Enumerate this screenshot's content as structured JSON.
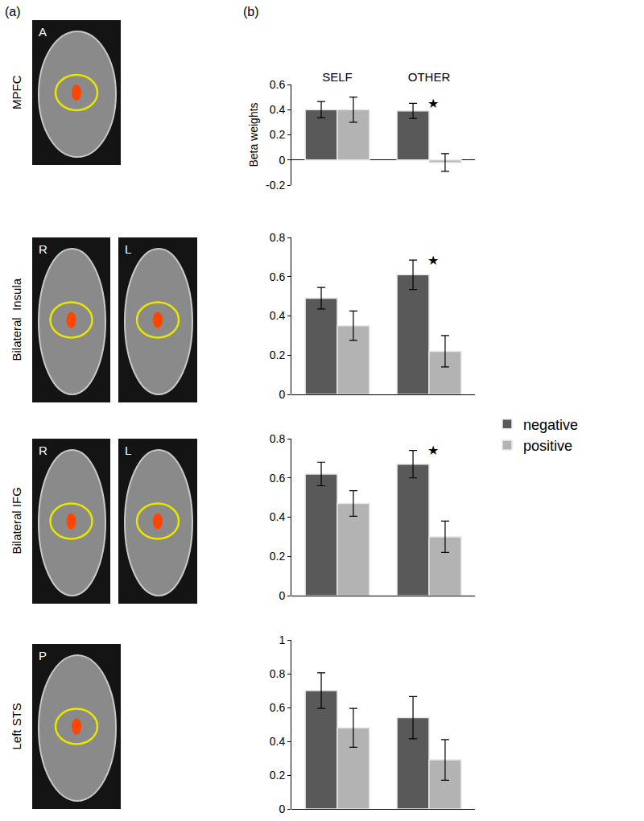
{
  "panel_labels": [
    "(a)",
    "(b)"
  ],
  "brain_panels": [
    {
      "region": "MPFC",
      "images": [
        "A"
      ]
    },
    {
      "region": "Bilateral  Insula",
      "images": [
        "R",
        "L"
      ]
    },
    {
      "region": "Bilateral IFG",
      "images": [
        "R",
        "L"
      ]
    },
    {
      "region": "Left STS",
      "images": [
        "P"
      ]
    }
  ],
  "chart_data": [
    {
      "type": "bar",
      "categories": [
        "SELF",
        "OTHER"
      ],
      "ylabel": "Beta weights",
      "tick_labels": true,
      "legend": "right",
      "ylim": [
        -0.2,
        0.6
      ],
      "yticks": [
        -0.2,
        0,
        0.2,
        0.4,
        0.6
      ],
      "series": [
        {
          "name": "negative",
          "color": "#595959",
          "values": [
            0.4,
            0.39
          ],
          "errors": [
            0.065,
            0.06
          ]
        },
        {
          "name": "positive",
          "color": "#b3b3b3",
          "values": [
            0.4,
            -0.02
          ],
          "errors": [
            0.1,
            0.07
          ]
        }
      ],
      "annotations": [
        {
          "text": "★",
          "category": "OTHER",
          "series": "negative"
        }
      ]
    },
    {
      "type": "bar",
      "categories": [
        "SELF",
        "OTHER"
      ],
      "tick_labels": "y",
      "ylim": [
        0,
        0.8
      ],
      "yticks": [
        0,
        0.2,
        0.4,
        0.6,
        0.8
      ],
      "series": [
        {
          "name": "negative",
          "color": "#595959",
          "values": [
            0.49,
            0.61
          ],
          "errors": [
            0.055,
            0.075
          ]
        },
        {
          "name": "positive",
          "color": "#b3b3b3",
          "values": [
            0.35,
            0.22
          ],
          "errors": [
            0.075,
            0.08
          ]
        }
      ],
      "annotations": [
        {
          "text": "★",
          "category": "OTHER",
          "series": "negative"
        }
      ]
    },
    {
      "type": "bar",
      "categories": [
        "SELF",
        "OTHER"
      ],
      "tick_labels": "y",
      "ylim": [
        0,
        0.8
      ],
      "yticks": [
        0,
        0.2,
        0.4,
        0.6,
        0.8
      ],
      "series": [
        {
          "name": "negative",
          "color": "#595959",
          "values": [
            0.62,
            0.67
          ],
          "errors": [
            0.06,
            0.07
          ]
        },
        {
          "name": "positive",
          "color": "#b3b3b3",
          "values": [
            0.47,
            0.3
          ],
          "errors": [
            0.065,
            0.08
          ]
        }
      ],
      "annotations": [
        {
          "text": "★",
          "category": "OTHER",
          "series": "negative"
        }
      ]
    },
    {
      "type": "bar",
      "categories": [
        "SELF",
        "OTHER"
      ],
      "tick_labels": "y",
      "ylim": [
        0,
        1
      ],
      "yticks": [
        0,
        0.2,
        0.4,
        0.6,
        0.8,
        1
      ],
      "series": [
        {
          "name": "negative",
          "color": "#595959",
          "values": [
            0.7,
            0.54
          ],
          "errors": [
            0.105,
            0.125
          ]
        },
        {
          "name": "positive",
          "color": "#b3b3b3",
          "values": [
            0.48,
            0.29
          ],
          "errors": [
            0.115,
            0.12
          ]
        }
      ]
    }
  ]
}
